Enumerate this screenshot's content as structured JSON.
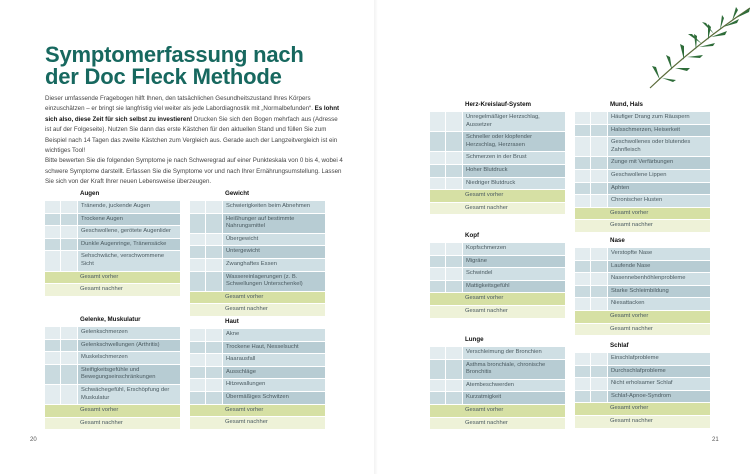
{
  "left_page": {
    "title_line1": "Symptomerfassung nach",
    "title_line2": "der Doc Fleck Methode",
    "intro_part1": "Dieser umfassende Fragebogen hilft Ihnen, den tatsächlichen Gesundheitszustand Ihres Körpers einzuschätzen – er bringt sie langfristig viel weiter als jede Labordiagnostik mit „Normalbefunden“. ",
    "intro_bold": "Es lohnt sich also, diese Zeit für sich selbst zu investieren!",
    "intro_part2": " Drucken Sie sich den Bogen mehrfach aus (Adresse ist auf der Folgeseite). Nutzen Sie dann das erste Kästchen für den aktuellen Stand und füllen Sie zum Beispiel nach 14 Tagen das zweite Kästchen zum Vergleich aus. Gerade auch der Langzeitvergleich ist ein wichtiges Tool!",
    "intro_part3": "Bitte bewerten Sie die folgenden Symptome je nach Schweregrad auf einer Punkteskala von 0 bis 4, wobei 4 schwere Symptome darstellt. Erfassen Sie die Symptome vor und nach Ihrer Ernährungsumstellung. Lassen Sie sich von der Kraft Ihrer neuen Lebensweise überzeugen.",
    "page_number": "20"
  },
  "right_page": {
    "page_number": "21"
  },
  "totals": {
    "before": "Gesamt vorher",
    "after": "Gesamt nachher"
  },
  "sections": [
    {
      "title": "Augen",
      "items": [
        "Tränende, juckende Augen",
        "Trockene Augen",
        "Geschwollene, gerötete Augenlider",
        "Dunkle Augenringe, Tränensäcke",
        "Sehschwäche, verschwommene Sicht"
      ]
    },
    {
      "title": "Gewicht",
      "items": [
        "Schwierigkeiten beim Abnehmen",
        "Heißhunger auf bestimmte Nahrungsmittel",
        "Übergewicht",
        "Untergewicht",
        "Zwanghaftes Essen",
        "Wassereinlagerungen (z. B. Schwellungen Unterschenkel)"
      ]
    },
    {
      "title": "Gelenke, Muskulatur",
      "items": [
        "Gelenkschmerzen",
        "Gelenkschwellungen (Arthritis)",
        "Muskelschmerzen",
        "Steifigkeitsgefühle und Bewegungseinschränkungen",
        "Schwächegefühl, Erschöpfung der Muskulatur"
      ]
    },
    {
      "title": "Haut",
      "items": [
        "Akne",
        "Trockene Haut, Nesselsucht",
        "Haarausfall",
        "Ausschläge",
        "Hitzewallungen",
        "Übermäßiges Schwitzen"
      ]
    },
    {
      "title": "Herz-Kreislauf-System",
      "items": [
        "Unregelmäßiger Herzschlag, Aussetzer",
        "Schneller oder klopfender Herzschlag, Herzrasen",
        "Schmerzen in der Brust",
        "Hoher Blutdruck",
        "Niedriger Blutdruck"
      ]
    },
    {
      "title": "Mund, Hals",
      "items": [
        "Häufiger Drang zum Räuspern",
        "Halsschmerzen, Heiserkeit",
        "Geschwollenes oder blutendes Zahnfleisch",
        "Zunge mit Verfärbungen",
        "Geschwollene Lippen",
        "Aphten",
        "Chronischer Husten"
      ]
    },
    {
      "title": "Kopf",
      "items": [
        "Kopfschmerzen",
        "Migräne",
        "Schwindel",
        "Mattigkeitsgefühl"
      ]
    },
    {
      "title": "Nase",
      "items": [
        "Verstopfte Nase",
        "Laufende Nase",
        "Nasennebenhöhlenprobleme",
        "Starke Schleimbildung",
        "Niesattacken"
      ]
    },
    {
      "title": "Lunge",
      "items": [
        "Verschleimung der Bronchien",
        "Asthma bronchiale, chronische Bronchitis",
        "Atembeschwerden",
        "Kurzatmigkeit"
      ]
    },
    {
      "title": "Schlaf",
      "items": [
        "Einschlafprobleme",
        "Durchschlafprobleme",
        "Nicht erholsamer Schlaf",
        "Schlaf-Apnoe-Syndrom"
      ]
    }
  ],
  "colors": {
    "title": "#17685f",
    "row_light": "#cfdfe4",
    "row_dark": "#b7ccd3",
    "total_before": "#d6e0a4",
    "total_after": "#eef2d8"
  }
}
